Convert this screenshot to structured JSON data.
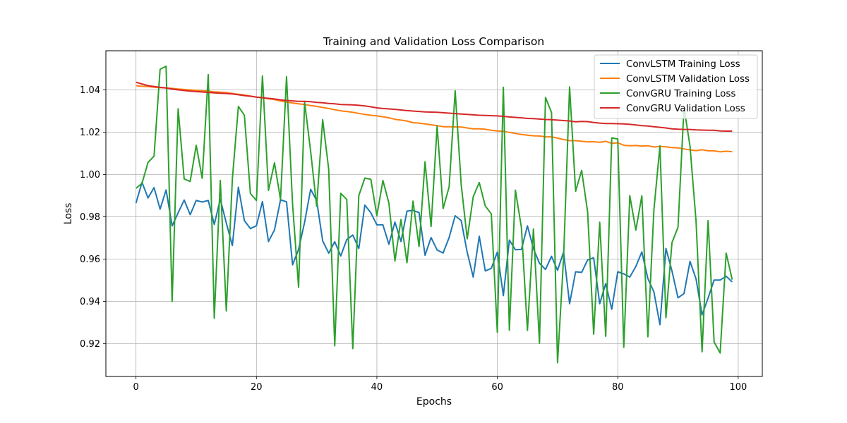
{
  "chart_data": {
    "type": "line",
    "title": "Training and Validation Loss Comparison",
    "xlabel": "Epochs",
    "ylabel": "Loss",
    "xlim": [
      -5,
      104
    ],
    "ylim": [
      0.9045,
      1.0585
    ],
    "xticks": [
      0,
      20,
      40,
      60,
      80,
      100
    ],
    "yticks": [
      0.92,
      0.94,
      0.96,
      0.98,
      1.0,
      1.02,
      1.04
    ],
    "ytick_labels": [
      "0.92",
      "0.94",
      "0.96",
      "0.98",
      "1.00",
      "1.02",
      "1.04"
    ],
    "grid": true,
    "legend_position": "top-right",
    "x": [
      0,
      1,
      2,
      3,
      4,
      5,
      6,
      7,
      8,
      9,
      10,
      11,
      12,
      13,
      14,
      15,
      16,
      17,
      18,
      19,
      20,
      21,
      22,
      23,
      24,
      25,
      26,
      27,
      28,
      29,
      30,
      31,
      32,
      33,
      34,
      35,
      36,
      37,
      38,
      39,
      40,
      41,
      42,
      43,
      44,
      45,
      46,
      47,
      48,
      49,
      50,
      51,
      52,
      53,
      54,
      55,
      56,
      57,
      58,
      59,
      60,
      61,
      62,
      63,
      64,
      65,
      66,
      67,
      68,
      69,
      70,
      71,
      72,
      73,
      74,
      75,
      76,
      77,
      78,
      79,
      80,
      81,
      82,
      83,
      84,
      85,
      86,
      87,
      88,
      89,
      90,
      91,
      92,
      93,
      94,
      95,
      96,
      97,
      98,
      99
    ],
    "series": [
      {
        "name": "ConvLSTM Training Loss",
        "color": "#1f77b4",
        "values": [
          0.9865,
          0.9963,
          0.9889,
          0.9938,
          0.9836,
          0.9927,
          0.9757,
          0.9819,
          0.9879,
          0.981,
          0.9877,
          0.987,
          0.9877,
          0.9764,
          0.9883,
          0.977,
          0.9664,
          0.994,
          0.9782,
          0.9744,
          0.9758,
          0.9872,
          0.9683,
          0.9738,
          0.988,
          0.9871,
          0.9573,
          0.9646,
          0.9774,
          0.993,
          0.9877,
          0.9686,
          0.9628,
          0.9682,
          0.9615,
          0.9692,
          0.9714,
          0.965,
          0.9855,
          0.9819,
          0.9762,
          0.9762,
          0.967,
          0.9775,
          0.9683,
          0.9827,
          0.983,
          0.982,
          0.9618,
          0.9702,
          0.9643,
          0.9629,
          0.9702,
          0.9805,
          0.9782,
          0.9632,
          0.9515,
          0.9708,
          0.9544,
          0.9556,
          0.9633,
          0.9427,
          0.969,
          0.9644,
          0.9646,
          0.9757,
          0.9649,
          0.958,
          0.9551,
          0.9613,
          0.9547,
          0.9633,
          0.9389,
          0.954,
          0.9537,
          0.9596,
          0.9606,
          0.9389,
          0.9484,
          0.9363,
          0.954,
          0.953,
          0.9515,
          0.9565,
          0.9634,
          0.9508,
          0.9445,
          0.929,
          0.965,
          0.9544,
          0.9417,
          0.9437,
          0.9589,
          0.9506,
          0.9336,
          0.9416,
          0.9501,
          0.9501,
          0.9519,
          0.9492
        ]
      },
      {
        "name": "ConvLSTM Validation Loss",
        "color": "#ff7f0e",
        "values": [
          1.042,
          1.0417,
          1.0416,
          1.0413,
          1.0411,
          1.0409,
          1.0407,
          1.0404,
          1.0402,
          1.04,
          1.0398,
          1.0396,
          1.0394,
          1.0391,
          1.0389,
          1.0387,
          1.0383,
          1.0379,
          1.0376,
          1.0371,
          1.0366,
          1.0363,
          1.0358,
          1.0354,
          1.0348,
          1.0342,
          1.0338,
          1.0334,
          1.0331,
          1.0326,
          1.0322,
          1.0317,
          1.0312,
          1.0306,
          1.0301,
          1.0298,
          1.0294,
          1.0289,
          1.0284,
          1.028,
          1.0277,
          1.0273,
          1.0268,
          1.0261,
          1.0257,
          1.0253,
          1.0245,
          1.0243,
          1.0239,
          1.0235,
          1.0231,
          1.0226,
          1.0226,
          1.0225,
          1.0224,
          1.022,
          1.0216,
          1.0216,
          1.0214,
          1.0209,
          1.0206,
          1.0204,
          1.0199,
          1.0194,
          1.0189,
          1.0186,
          1.0183,
          1.0182,
          1.0178,
          1.0178,
          1.0172,
          1.0165,
          1.016,
          1.016,
          1.0157,
          1.0154,
          1.0155,
          1.0152,
          1.0157,
          1.0147,
          1.015,
          1.0138,
          1.0136,
          1.0137,
          1.0134,
          1.0136,
          1.013,
          1.0133,
          1.0131,
          1.0127,
          1.0126,
          1.0121,
          1.0116,
          1.0113,
          1.0117,
          1.0112,
          1.0112,
          1.0107,
          1.011,
          1.0108
        ]
      },
      {
        "name": "ConvGRU Training Loss",
        "color": "#2ca02c",
        "values": [
          0.9935,
          0.9958,
          1.0057,
          1.0087,
          1.0497,
          1.0512,
          0.94,
          1.0311,
          0.9979,
          0.9967,
          1.0138,
          0.9982,
          1.0472,
          0.9321,
          0.9972,
          0.9355,
          0.9977,
          1.0322,
          1.028,
          0.991,
          0.9877,
          1.0466,
          0.9925,
          1.0055,
          0.9881,
          1.0462,
          0.986,
          0.9467,
          1.0342,
          1.011,
          0.985,
          1.0259,
          1.0025,
          0.919,
          0.9911,
          0.9882,
          0.9177,
          0.99,
          0.9983,
          0.9977,
          0.9805,
          0.9972,
          0.9864,
          0.9591,
          0.9787,
          0.9583,
          0.9874,
          0.9659,
          1.006,
          0.9754,
          1.0229,
          0.9839,
          0.9942,
          1.0396,
          0.9953,
          0.9696,
          0.9895,
          0.9962,
          0.9851,
          0.9814,
          0.9254,
          1.0412,
          0.9264,
          0.9926,
          0.9749,
          0.9263,
          0.9742,
          0.9202,
          1.0364,
          1.0293,
          0.911,
          0.9603,
          1.0414,
          0.9921,
          1.0019,
          0.9822,
          0.9245,
          0.9774,
          0.9235,
          1.0173,
          1.0168,
          0.9183,
          0.99,
          0.9737,
          0.9899,
          0.9233,
          0.9832,
          1.0135,
          0.9323,
          0.9678,
          0.975,
          1.0318,
          1.0133,
          0.9779,
          0.9162,
          0.9782,
          0.9208,
          0.9156,
          0.9628,
          0.9503
        ]
      },
      {
        "name": "ConvGRU Validation Loss",
        "color": "#d62728",
        "values": [
          1.0436,
          1.0428,
          1.042,
          1.0416,
          1.0412,
          1.0409,
          1.0404,
          1.04,
          1.0397,
          1.0394,
          1.0392,
          1.039,
          1.0388,
          1.0386,
          1.0384,
          1.0383,
          1.0381,
          1.0377,
          1.0373,
          1.037,
          1.0366,
          1.0363,
          1.036,
          1.0357,
          1.0353,
          1.035,
          1.0348,
          1.0346,
          1.0346,
          1.0344,
          1.0341,
          1.0339,
          1.0336,
          1.0334,
          1.0331,
          1.033,
          1.0329,
          1.0327,
          1.0324,
          1.032,
          1.0315,
          1.0312,
          1.031,
          1.0308,
          1.0305,
          1.0302,
          1.03,
          1.0298,
          1.0296,
          1.0295,
          1.0294,
          1.0292,
          1.029,
          1.0288,
          1.0286,
          1.0284,
          1.0282,
          1.028,
          1.0279,
          1.0278,
          1.0277,
          1.0275,
          1.0272,
          1.027,
          1.0268,
          1.0265,
          1.0264,
          1.0262,
          1.026,
          1.0259,
          1.0257,
          1.0255,
          1.0253,
          1.0249,
          1.0251,
          1.025,
          1.0246,
          1.0243,
          1.0241,
          1.0241,
          1.024,
          1.0239,
          1.0237,
          1.0234,
          1.0231,
          1.0229,
          1.0226,
          1.0223,
          1.022,
          1.0216,
          1.0214,
          1.0213,
          1.0213,
          1.0211,
          1.021,
          1.0209,
          1.0209,
          1.0206,
          1.0205,
          1.0205
        ]
      }
    ]
  }
}
